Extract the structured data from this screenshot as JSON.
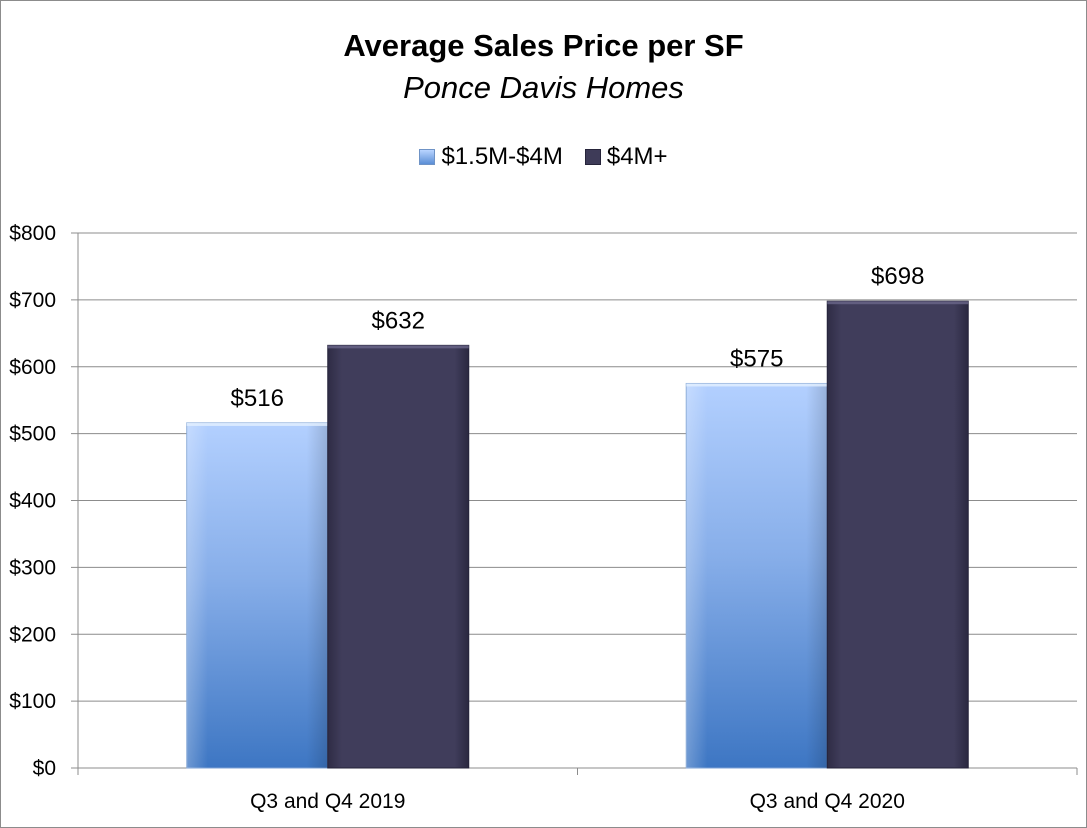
{
  "chart_data": {
    "type": "bar",
    "title": "Average Sales Price per SF",
    "subtitle": "Ponce Davis Homes",
    "categories": [
      "Q3 and Q4 2019",
      "Q3 and Q4 2020"
    ],
    "series": [
      {
        "name": "$1.5M-$4M",
        "values": [
          516,
          575
        ],
        "labels": [
          "$516",
          "$575"
        ],
        "color": "#6b9be0"
      },
      {
        "name": "$4M+",
        "values": [
          632,
          698
        ],
        "labels": [
          "$632",
          "$698"
        ],
        "color": "#3e3b58"
      }
    ],
    "ylim": [
      0,
      800
    ],
    "yticks": [
      0,
      100,
      200,
      300,
      400,
      500,
      600,
      700,
      800
    ],
    "ytick_labels": [
      "$0",
      "$100",
      "$200",
      "$300",
      "$400",
      "$500",
      "$600",
      "$700",
      "$800"
    ],
    "legend_position": "top-center",
    "grid": true
  }
}
